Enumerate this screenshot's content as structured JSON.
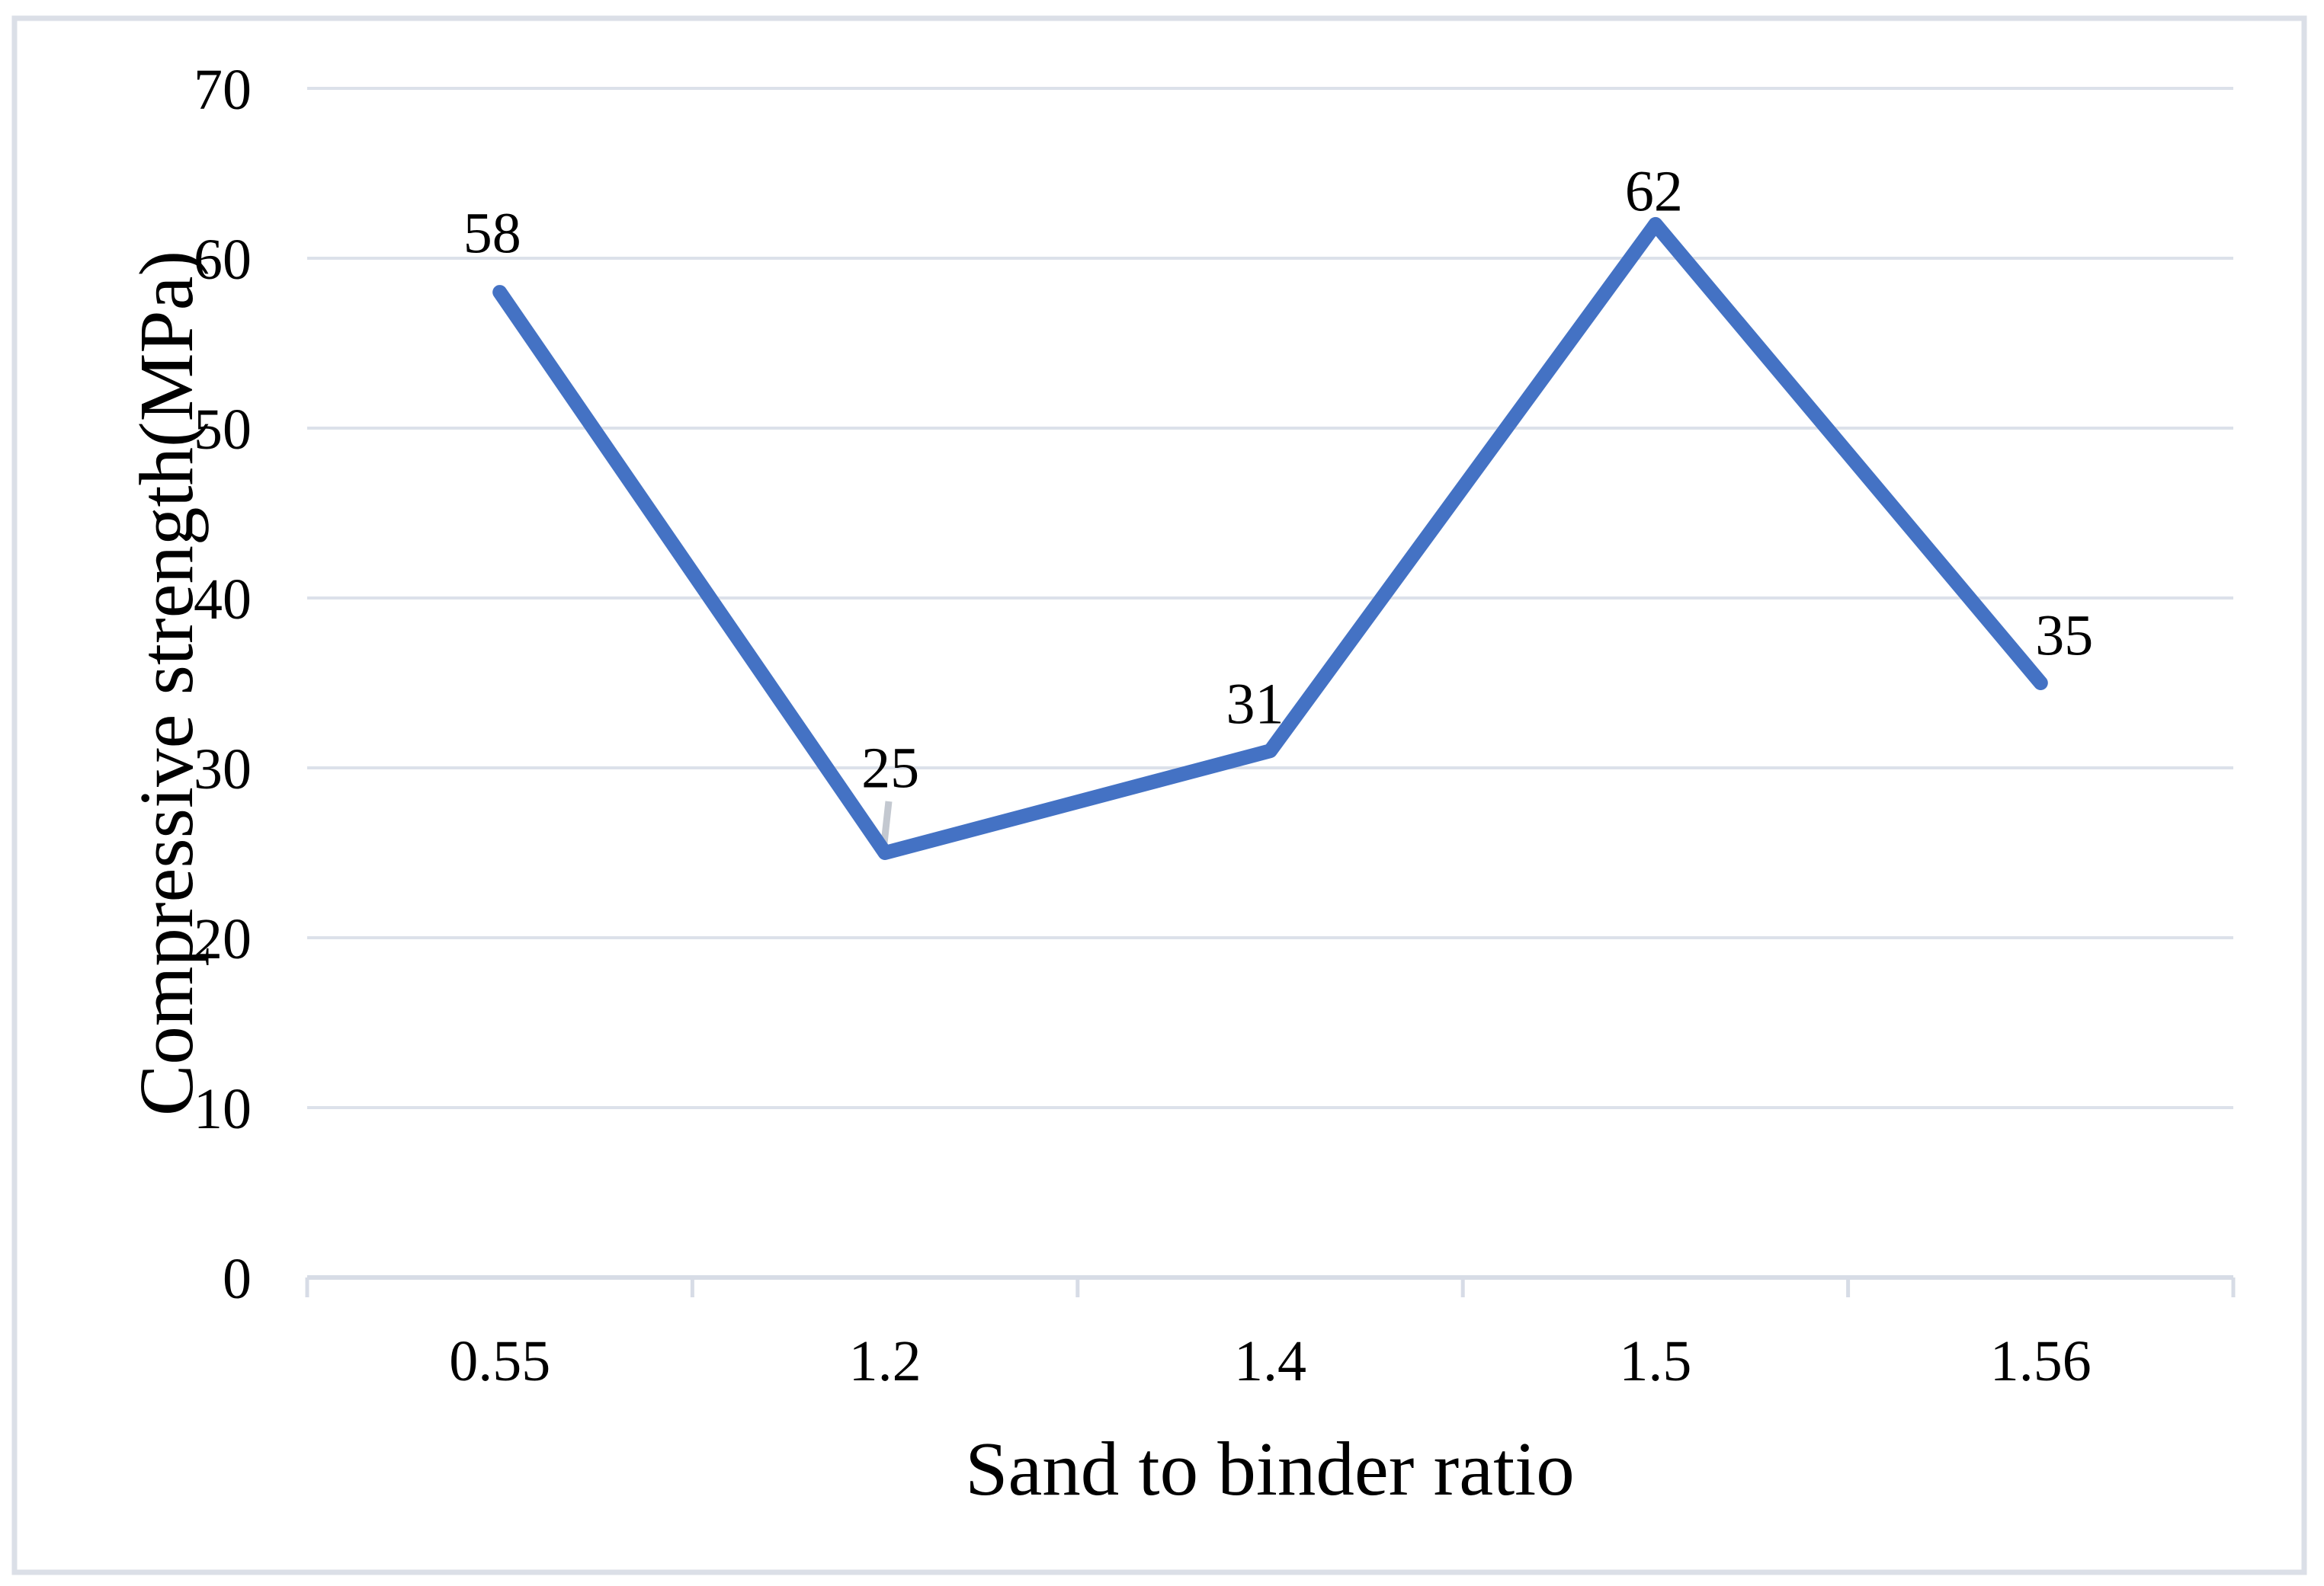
{
  "chart_data": {
    "type": "line",
    "title": "",
    "xlabel": "Sand to binder ratio",
    "ylabel": "Compressive strength(MPa)",
    "categories": [
      "0.55",
      "1.2",
      "1.4",
      "1.5",
      "1.56"
    ],
    "series": [
      {
        "name": "Compressive strength (MPa)",
        "values": [
          58,
          25,
          31,
          62,
          35
        ]
      }
    ],
    "data_labels": [
      "58",
      "25",
      "31",
      "62",
      "35"
    ],
    "yticks": [
      "0",
      "10",
      "20",
      "30",
      "40",
      "50",
      "60",
      "70"
    ],
    "ylim": [
      0,
      70
    ],
    "grid": "horizontal",
    "legend": "none",
    "colors": {
      "line": "#4472C4",
      "gridline": "#dce1ea",
      "axis_line": "#d7dce6",
      "leader_line": "#c3c8d0",
      "text": "#000000",
      "frame_border": "#dbdfe7",
      "background": "#ffffff"
    }
  }
}
